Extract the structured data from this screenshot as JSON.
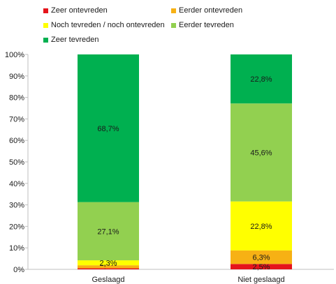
{
  "chart_data": {
    "type": "bar",
    "stacked": true,
    "title": "",
    "xlabel": "",
    "ylabel": "",
    "ylim": [
      0,
      100
    ],
    "y_unit": "%",
    "y_ticks": [
      0,
      10,
      20,
      30,
      40,
      50,
      60,
      70,
      80,
      90,
      100
    ],
    "y_tick_labels": [
      "0%",
      "10%",
      "20%",
      "30%",
      "40%",
      "50%",
      "60%",
      "70%",
      "80%",
      "90%",
      "100%"
    ],
    "categories": [
      "Geslaagd",
      "Niet geslaagd"
    ],
    "series": [
      {
        "name": "Zeer ontevreden",
        "color": "#e5141b",
        "values": [
          0.5,
          2.5
        ],
        "labels": [
          "0,5%",
          "2,5%"
        ]
      },
      {
        "name": "Eerder ontevreden",
        "color": "#f7b114",
        "values": [
          1.4,
          6.3
        ],
        "labels": [
          "1,4%",
          "6,3%"
        ]
      },
      {
        "name": "Noch tevreden / noch ontevreden",
        "color": "#ffff00",
        "values": [
          2.3,
          22.8
        ],
        "labels": [
          "2,3%",
          "22,8%"
        ]
      },
      {
        "name": "Eerder tevreden",
        "color": "#92d050",
        "values": [
          27.1,
          45.6
        ],
        "labels": [
          "27,1%",
          "45,6%"
        ]
      },
      {
        "name": "Zeer tevreden",
        "color": "#00b050",
        "values": [
          68.7,
          22.8
        ],
        "labels": [
          "68,7%",
          "22,8%"
        ]
      }
    ],
    "legend_position": "top-left",
    "grid": false
  }
}
